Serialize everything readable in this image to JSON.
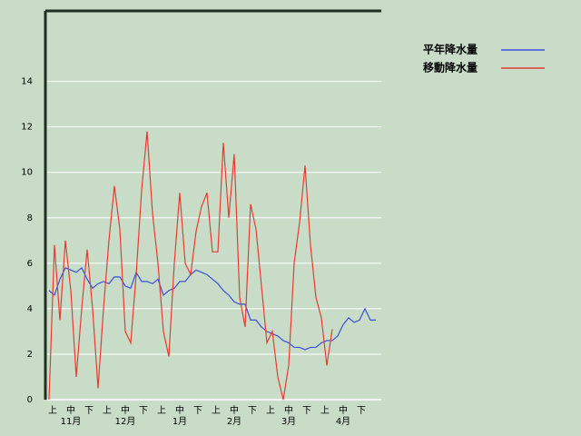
{
  "chart_data": {
    "type": "line",
    "x": [
      3,
      6,
      9,
      12,
      15,
      18,
      21,
      24,
      27,
      30,
      33,
      36,
      39,
      42,
      45,
      48,
      51,
      54,
      57,
      60,
      63,
      66,
      69,
      72,
      75,
      78,
      81,
      84,
      87,
      90,
      93,
      96,
      99,
      102,
      105,
      108,
      111,
      114,
      117,
      120,
      123,
      126,
      129,
      132,
      135,
      138,
      141,
      144,
      147,
      150,
      153,
      156,
      159,
      162,
      165,
      168,
      171,
      174,
      177,
      180,
      183
    ],
    "xlim": [
      2,
      186
    ],
    "xticks": [
      {
        "value": 5,
        "label": "上"
      },
      {
        "value": 15,
        "label": "中"
      },
      {
        "value": 25,
        "label": "下"
      },
      {
        "value": 35,
        "label": "上"
      },
      {
        "value": 45,
        "label": "中"
      },
      {
        "value": 55,
        "label": "下"
      },
      {
        "value": 65,
        "label": "上"
      },
      {
        "value": 75,
        "label": "中"
      },
      {
        "value": 85,
        "label": "下"
      },
      {
        "value": 95,
        "label": "上"
      },
      {
        "value": 105,
        "label": "中"
      },
      {
        "value": 115,
        "label": "下"
      },
      {
        "value": 125,
        "label": "上"
      },
      {
        "value": 135,
        "label": "中"
      },
      {
        "value": 145,
        "label": "下"
      },
      {
        "value": 155,
        "label": "上"
      },
      {
        "value": 165,
        "label": "中"
      },
      {
        "value": 175,
        "label": "下"
      }
    ],
    "x_group_labels": [
      {
        "value": 15,
        "label": "11月"
      },
      {
        "value": 45,
        "label": "12月"
      },
      {
        "value": 75,
        "label": "1月"
      },
      {
        "value": 105,
        "label": "2月"
      },
      {
        "value": 135,
        "label": "3月"
      },
      {
        "value": 165,
        "label": "4月"
      }
    ],
    "ylim": [
      0,
      17.1
    ],
    "yticks": [
      0,
      2,
      4,
      6,
      8,
      10,
      12,
      14
    ],
    "grid": true,
    "legend": "right",
    "series": [
      {
        "name": "平年降水量",
        "color": "#3c50dc",
        "values": [
          4.8,
          4.6,
          5.3,
          5.8,
          5.7,
          5.6,
          5.8,
          5.3,
          4.9,
          5.1,
          5.2,
          5.1,
          5.4,
          5.4,
          5.0,
          4.9,
          5.6,
          5.2,
          5.2,
          5.1,
          5.3,
          4.6,
          4.8,
          4.9,
          5.2,
          5.2,
          5.5,
          5.7,
          5.6,
          5.5,
          5.3,
          5.1,
          4.8,
          4.6,
          4.3,
          4.2,
          4.2,
          3.5,
          3.5,
          3.2,
          3.0,
          2.9,
          2.8,
          2.6,
          2.5,
          2.3,
          2.3,
          2.2,
          2.3,
          2.3,
          2.5,
          2.6,
          2.6,
          2.8,
          3.3,
          3.6,
          3.4,
          3.5,
          4.0,
          3.5,
          3.5
        ]
      },
      {
        "name": "移動降水量",
        "color": "#e63c32",
        "values": [
          0,
          6.8,
          3.5,
          7.0,
          4.8,
          1.0,
          4.0,
          6.6,
          4.0,
          0.5,
          4.0,
          7.0,
          9.4,
          7.5,
          3.0,
          2.5,
          5.5,
          9.2,
          11.8,
          8.2,
          6.0,
          3.0,
          1.9,
          6.0,
          9.1,
          6.0,
          5.5,
          7.4,
          8.5,
          9.1,
          6.5,
          6.5,
          11.3,
          8.0,
          10.8,
          4.5,
          3.2,
          8.6,
          7.5,
          5.0,
          2.5,
          3.0,
          1.0,
          0,
          1.5,
          6.0,
          7.8,
          10.3,
          6.8,
          4.5,
          3.6,
          1.5,
          3.1,
          null,
          null,
          null,
          null,
          null,
          null,
          null,
          null
        ]
      }
    ]
  }
}
